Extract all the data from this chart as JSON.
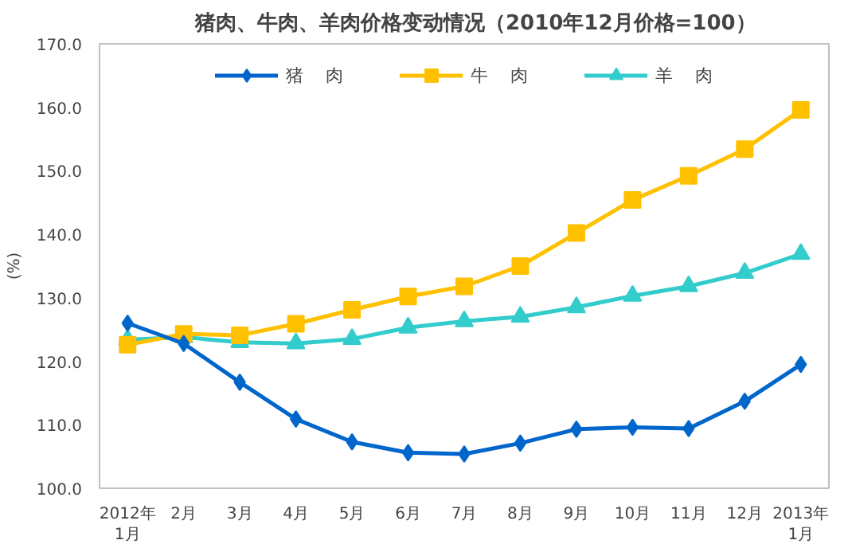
{
  "chart_data": {
    "type": "line",
    "title": "猪肉、牛肉、羊肉价格变动情况（2010年12月价格=100）",
    "ylabel": "(%)",
    "categories": [
      "2012年\n1月",
      "2月",
      "3月",
      "4月",
      "5月",
      "6月",
      "7月",
      "8月",
      "9月",
      "10月",
      "11月",
      "12月",
      "2013年\n1月"
    ],
    "series": [
      {
        "name": "猪    肉",
        "color": "#0066cc",
        "marker": "diamond",
        "values": [
          126.0,
          122.8,
          116.7,
          110.9,
          107.3,
          105.6,
          105.4,
          107.1,
          109.3,
          109.6,
          109.4,
          113.7,
          119.5
        ]
      },
      {
        "name": "牛    肉",
        "color": "#ffc000",
        "marker": "square",
        "values": [
          122.6,
          124.3,
          124.1,
          125.9,
          128.1,
          130.2,
          131.8,
          135.0,
          140.2,
          145.4,
          149.2,
          153.4,
          159.6
        ]
      },
      {
        "name": "羊    肉",
        "color": "#33cccc",
        "marker": "triangle",
        "values": [
          123.4,
          123.8,
          123.0,
          122.8,
          123.5,
          125.3,
          126.3,
          127.0,
          128.5,
          130.3,
          131.8,
          133.9,
          136.9
        ]
      }
    ],
    "ylim": [
      100,
      170
    ],
    "yticks": [
      {
        "value": 100,
        "label": "100.0"
      },
      {
        "value": 110,
        "label": "110.0"
      },
      {
        "value": 120,
        "label": "120.0"
      },
      {
        "value": 130,
        "label": "130.0"
      },
      {
        "value": 140,
        "label": "140.0"
      },
      {
        "value": 150,
        "label": "150.0"
      },
      {
        "value": 160,
        "label": "160.0"
      },
      {
        "value": 170,
        "label": "170.0"
      }
    ],
    "grid": false,
    "legend": "top",
    "line_style": "solid"
  }
}
